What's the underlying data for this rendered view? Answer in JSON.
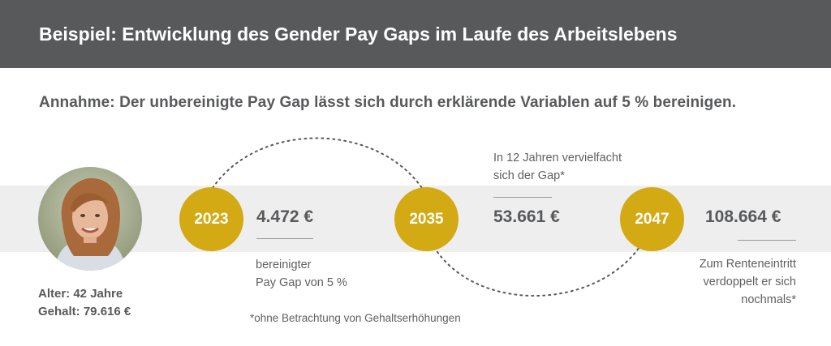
{
  "header": {
    "title": "Beispiel: Entwicklung des Gender Pay Gaps im Laufe des Arbeitslebens"
  },
  "assumption": "Annahme: Der unbereinigte Pay Gap lässt sich durch erklärende Variablen auf 5 % bereinigen.",
  "person": {
    "age": "Alter: 42 Jahre",
    "salary": "Gehalt: 79.616 €",
    "photo": "portrait-photo"
  },
  "timeline": [
    {
      "year": "2023",
      "amount": "4.472 €",
      "note_lines": [
        "bereinigter",
        "Pay Gap von 5 %"
      ]
    },
    {
      "year": "2035",
      "amount": "53.661 €",
      "note_lines": [
        "In 12 Jahren vervielfacht",
        "sich der Gap*"
      ]
    },
    {
      "year": "2047",
      "amount": "108.664 €",
      "note_lines": [
        "Zum Renteneintritt",
        "verdoppelt er sich",
        "nochmals*"
      ]
    }
  ],
  "footnote": "*ohne Betrachtung von Gehaltserhöhungen",
  "colors": {
    "header_bg": "#58595b",
    "accent": "#d3aa13",
    "band": "#eeeeef",
    "text": "#58595b"
  }
}
